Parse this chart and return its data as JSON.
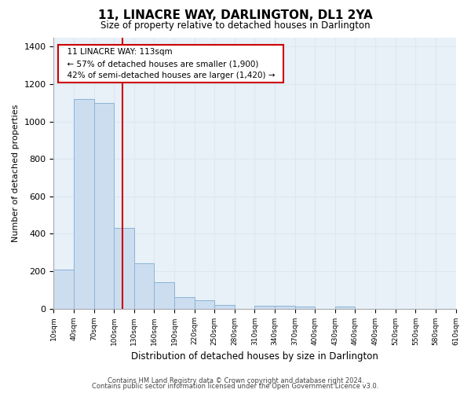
{
  "title": "11, LINACRE WAY, DARLINGTON, DL1 2YA",
  "subtitle": "Size of property relative to detached houses in Darlington",
  "xlabel": "Distribution of detached houses by size in Darlington",
  "ylabel": "Number of detached properties",
  "bar_color": "#ccddf0",
  "bar_edge_color": "#8ab4d4",
  "vline_color": "#cc0000",
  "vline_x": 113,
  "bin_edges": [
    10,
    40,
    70,
    100,
    130,
    160,
    190,
    220,
    250,
    280,
    310,
    340,
    370,
    400,
    430,
    460,
    490,
    520,
    550,
    580,
    610
  ],
  "bar_heights": [
    210,
    1120,
    1100,
    430,
    240,
    140,
    60,
    45,
    20,
    0,
    15,
    15,
    10,
    0,
    10,
    0,
    0,
    0,
    0,
    0
  ],
  "annotation_title": "11 LINACRE WAY: 113sqm",
  "annotation_line1": "← 57% of detached houses are smaller (1,900)",
  "annotation_line2": "42% of semi-detached houses are larger (1,420) →",
  "annotation_box_color": "#ffffff",
  "annotation_box_edge": "#cc0000",
  "ylim": [
    0,
    1450
  ],
  "yticks": [
    0,
    200,
    400,
    600,
    800,
    1000,
    1200,
    1400
  ],
  "xlim_min": 10,
  "xlim_max": 610,
  "background_color": "#ffffff",
  "grid_color": "#dce8f0",
  "footer_line1": "Contains HM Land Registry data © Crown copyright and database right 2024.",
  "footer_line2": "Contains public sector information licensed under the Open Government Licence v3.0."
}
